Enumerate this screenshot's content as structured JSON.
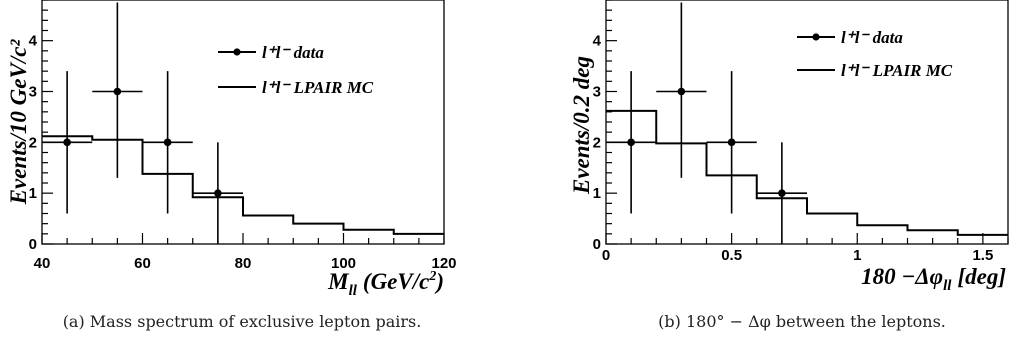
{
  "chart_data": [
    {
      "type": "line",
      "ylabel": "Events/10 GeV/c²",
      "xlim": [
        40,
        120
      ],
      "ylim": [
        0,
        4.8
      ],
      "xticks": [
        "40",
        "60",
        "80",
        "100",
        "120"
      ],
      "yticks": [
        "0",
        "1",
        "2",
        "3",
        "4"
      ],
      "legend_position": "top-right",
      "caption": "(a)  Mass spectrum of exclusive lepton pairs.",
      "series": [
        {
          "name": "l⁺l⁻ data",
          "style": "points-with-errorbars",
          "points": [
            {
              "x": 45,
              "xerr": 5,
              "y": 2,
              "ylo": 0.6,
              "yhi": 3.4
            },
            {
              "x": 55,
              "xerr": 5,
              "y": 3,
              "ylo": 1.3,
              "yhi": 4.75
            },
            {
              "x": 65,
              "xerr": 5,
              "y": 2,
              "ylo": 0.6,
              "yhi": 3.4
            },
            {
              "x": 75,
              "xerr": 5,
              "y": 1,
              "ylo": 0.0,
              "yhi": 2.0
            }
          ]
        },
        {
          "name": "l⁺l⁻ LPAIR MC",
          "style": "step-histogram",
          "edges": [
            40,
            50,
            60,
            70,
            80,
            90,
            100,
            110,
            120
          ],
          "values": [
            2.12,
            2.05,
            1.38,
            0.92,
            0.56,
            0.4,
            0.28,
            0.2
          ]
        }
      ]
    },
    {
      "type": "line",
      "ylabel": "Events/0.2 deg",
      "xlim": [
        0,
        1.6
      ],
      "ylim": [
        0,
        4.8
      ],
      "xticks": [
        "0",
        "0.5",
        "1",
        "1.5"
      ],
      "yticks": [
        "0",
        "1",
        "2",
        "3",
        "4"
      ],
      "legend_position": "top-right",
      "caption": "(b)  180° − Δφ between the leptons.",
      "series": [
        {
          "name": "l⁺l⁻ data",
          "style": "points-with-errorbars",
          "points": [
            {
              "x": 0.1,
              "xerr": 0.1,
              "y": 2,
              "ylo": 0.6,
              "yhi": 3.4
            },
            {
              "x": 0.3,
              "xerr": 0.1,
              "y": 3,
              "ylo": 1.3,
              "yhi": 4.75
            },
            {
              "x": 0.5,
              "xerr": 0.1,
              "y": 2,
              "ylo": 0.6,
              "yhi": 3.4
            },
            {
              "x": 0.7,
              "xerr": 0.1,
              "y": 1,
              "ylo": 0.0,
              "yhi": 2.0
            }
          ]
        },
        {
          "name": "l⁺l⁻ LPAIR MC",
          "style": "step-histogram",
          "edges": [
            0,
            0.2,
            0.4,
            0.6,
            0.8,
            1.0,
            1.2,
            1.4,
            1.6
          ],
          "values": [
            2.62,
            1.98,
            1.35,
            0.9,
            0.6,
            0.37,
            0.27,
            0.18
          ]
        }
      ]
    }
  ]
}
